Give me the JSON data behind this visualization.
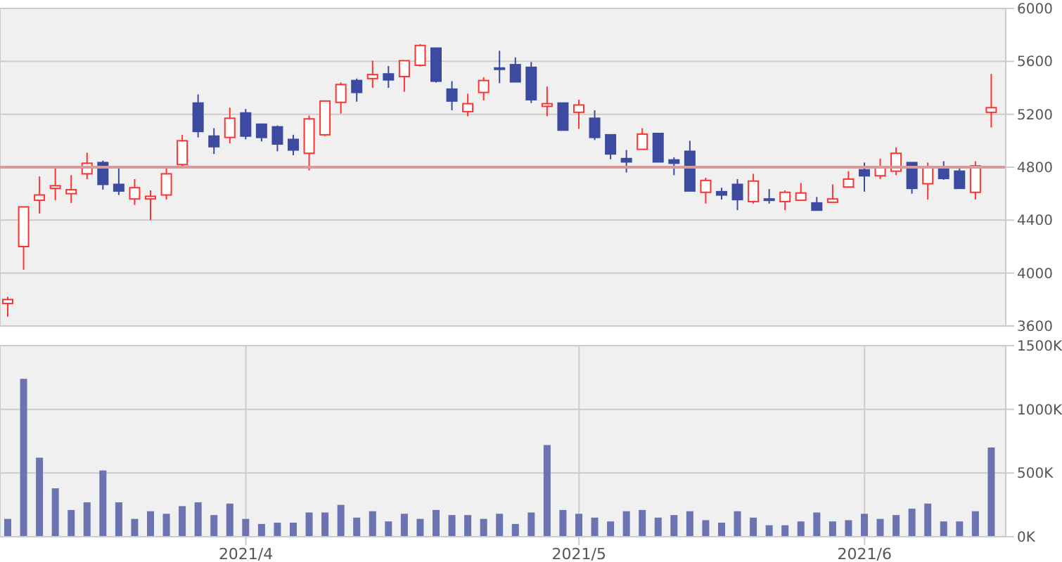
{
  "chart_data": [
    {
      "type": "candlestick",
      "categories": [
        null,
        null,
        null,
        null,
        null,
        null,
        null,
        null,
        null,
        null,
        null,
        null,
        null,
        null,
        null,
        "2021/4",
        null,
        null,
        null,
        null,
        null,
        null,
        null,
        null,
        null,
        null,
        null,
        null,
        null,
        null,
        null,
        null,
        null,
        null,
        null,
        null,
        "2021/5",
        null,
        null,
        null,
        null,
        null,
        null,
        null,
        null,
        null,
        null,
        null,
        null,
        null,
        null,
        null,
        null,
        null,
        "2021/6",
        null,
        null,
        null,
        null,
        null,
        null,
        null,
        null
      ],
      "ohlc": [
        [
          3770,
          3820,
          3670,
          3800
        ],
        [
          4200,
          4500,
          4025,
          4500
        ],
        [
          4550,
          4730,
          4450,
          4590
        ],
        [
          4640,
          4790,
          4550,
          4660
        ],
        [
          4600,
          4740,
          4530,
          4630
        ],
        [
          4750,
          4910,
          4710,
          4830
        ],
        [
          4835,
          4850,
          4630,
          4670
        ],
        [
          4670,
          4790,
          4590,
          4620
        ],
        [
          4560,
          4710,
          4515,
          4645
        ],
        [
          4560,
          4625,
          4400,
          4580
        ],
        [
          4590,
          4810,
          4555,
          4750
        ],
        [
          4820,
          5045,
          4805,
          5000
        ],
        [
          5285,
          5350,
          5025,
          5070
        ],
        [
          5035,
          5095,
          4900,
          4955
        ],
        [
          5025,
          5250,
          4980,
          5170
        ],
        [
          5210,
          5240,
          5010,
          5035
        ],
        [
          5125,
          5130,
          4995,
          5025
        ],
        [
          5105,
          5115,
          4920,
          4975
        ],
        [
          5010,
          5045,
          4890,
          4930
        ],
        [
          4905,
          5190,
          4775,
          5165
        ],
        [
          5045,
          5300,
          5035,
          5300
        ],
        [
          5290,
          5440,
          5205,
          5425
        ],
        [
          5455,
          5470,
          5295,
          5365
        ],
        [
          5470,
          5605,
          5400,
          5500
        ],
        [
          5505,
          5565,
          5400,
          5460
        ],
        [
          5485,
          5605,
          5370,
          5605
        ],
        [
          5570,
          5730,
          5560,
          5720
        ],
        [
          5700,
          5700,
          5440,
          5450
        ],
        [
          5390,
          5450,
          5230,
          5300
        ],
        [
          5220,
          5355,
          5185,
          5280
        ],
        [
          5365,
          5480,
          5305,
          5455
        ],
        [
          5550,
          5680,
          5435,
          5550
        ],
        [
          5575,
          5630,
          5445,
          5445
        ],
        [
          5555,
          5595,
          5285,
          5310
        ],
        [
          5260,
          5410,
          5185,
          5280
        ],
        [
          5285,
          5285,
          5080,
          5080
        ],
        [
          5215,
          5310,
          5090,
          5270
        ],
        [
          5170,
          5230,
          5005,
          5025
        ],
        [
          5045,
          5045,
          4860,
          4900
        ],
        [
          4865,
          4930,
          4760,
          4840
        ],
        [
          4935,
          5095,
          4935,
          5050
        ],
        [
          5055,
          5055,
          4840,
          4840
        ],
        [
          4855,
          4875,
          4740,
          4830
        ],
        [
          4920,
          5000,
          4620,
          4620
        ],
        [
          4610,
          4720,
          4525,
          4700
        ],
        [
          4615,
          4645,
          4555,
          4590
        ],
        [
          4670,
          4710,
          4475,
          4555
        ],
        [
          4540,
          4750,
          4525,
          4695
        ],
        [
          4560,
          4635,
          4525,
          4560
        ],
        [
          4540,
          4625,
          4475,
          4610
        ],
        [
          4550,
          4680,
          4550,
          4605
        ],
        [
          4530,
          4575,
          4475,
          4475
        ],
        [
          4535,
          4670,
          4535,
          4560
        ],
        [
          4650,
          4770,
          4650,
          4710
        ],
        [
          4780,
          4835,
          4615,
          4735
        ],
        [
          4735,
          4865,
          4710,
          4805
        ],
        [
          4770,
          4950,
          4740,
          4905
        ],
        [
          4835,
          4835,
          4600,
          4640
        ],
        [
          4675,
          4835,
          4555,
          4805
        ],
        [
          4805,
          4845,
          4705,
          4715
        ],
        [
          4770,
          4810,
          4640,
          4640
        ],
        [
          4610,
          4845,
          4555,
          4810
        ],
        [
          5215,
          5505,
          5100,
          5250
        ]
      ],
      "colors": [
        "#ff3333",
        "#ff3333",
        "#ff3333",
        "#ff3333",
        "#ff3333",
        "#ff3333",
        "#3c4ba0",
        "#3c4ba0",
        "#ff3333",
        "#ff3333",
        "#ff3333",
        "#ff3333",
        "#3c4ba0",
        "#3c4ba0",
        "#ff3333",
        "#3c4ba0",
        "#3c4ba0",
        "#3c4ba0",
        "#3c4ba0",
        "#ff3333",
        "#ff3333",
        "#ff3333",
        "#3c4ba0",
        "#ff3333",
        "#3c4ba0",
        "#ff3333",
        "#ff3333",
        "#3c4ba0",
        "#3c4ba0",
        "#ff3333",
        "#ff3333",
        "#3c4ba0",
        "#3c4ba0",
        "#3c4ba0",
        "#ff3333",
        "#3c4ba0",
        "#ff3333",
        "#3c4ba0",
        "#3c4ba0",
        "#3c4ba0",
        "#ff3333",
        "#3c4ba0",
        "#3c4ba0",
        "#3c4ba0",
        "#ff3333",
        "#3c4ba0",
        "#3c4ba0",
        "#ff3333",
        "#3c4ba0",
        "#ff3333",
        "#ff3333",
        "#3c4ba0",
        "#ff3333",
        "#ff3333",
        "#3c4ba0",
        "#ff3333",
        "#ff3333",
        "#3c4ba0",
        "#ff3333",
        "#3c4ba0",
        "#3c4ba0",
        "#ff3333",
        "#ff3333"
      ],
      "ylim": [
        3600,
        6000
      ],
      "yticks": [
        3600,
        4000,
        4400,
        4800,
        5200,
        5600,
        6000
      ],
      "grid": true,
      "tick_labels": "y",
      "ref_lines": [
        {
          "axis": "y",
          "value": 4800,
          "color": "#d99a9a"
        }
      ]
    },
    {
      "type": "bar",
      "categories": [
        null,
        null,
        null,
        null,
        null,
        null,
        null,
        null,
        null,
        null,
        null,
        null,
        null,
        null,
        null,
        "2021/4",
        null,
        null,
        null,
        null,
        null,
        null,
        null,
        null,
        null,
        null,
        null,
        null,
        null,
        null,
        null,
        null,
        null,
        null,
        null,
        null,
        "2021/5",
        null,
        null,
        null,
        null,
        null,
        null,
        null,
        null,
        null,
        null,
        null,
        null,
        null,
        null,
        null,
        null,
        null,
        "2021/6",
        null,
        null,
        null,
        null,
        null,
        null,
        null,
        null
      ],
      "values": [
        140000,
        1240000,
        620000,
        380000,
        210000,
        270000,
        520000,
        270000,
        140000,
        200000,
        180000,
        240000,
        270000,
        170000,
        260000,
        140000,
        100000,
        110000,
        110000,
        190000,
        190000,
        250000,
        150000,
        200000,
        120000,
        180000,
        140000,
        210000,
        170000,
        170000,
        140000,
        180000,
        100000,
        190000,
        720000,
        210000,
        180000,
        150000,
        120000,
        200000,
        210000,
        150000,
        170000,
        200000,
        130000,
        110000,
        200000,
        150000,
        90000,
        90000,
        120000,
        190000,
        120000,
        130000,
        180000,
        140000,
        170000,
        220000,
        260000,
        120000,
        120000,
        200000,
        700000
      ],
      "color": "#6b73b0",
      "ylim": [
        0,
        1500000
      ],
      "yticks": [
        {
          "value": 0,
          "label": "0K"
        },
        {
          "value": 500000,
          "label": "500K"
        },
        {
          "value": 1000000,
          "label": "1000K"
        },
        {
          "value": 1500000,
          "label": "1500K"
        }
      ],
      "grid": true
    }
  ]
}
